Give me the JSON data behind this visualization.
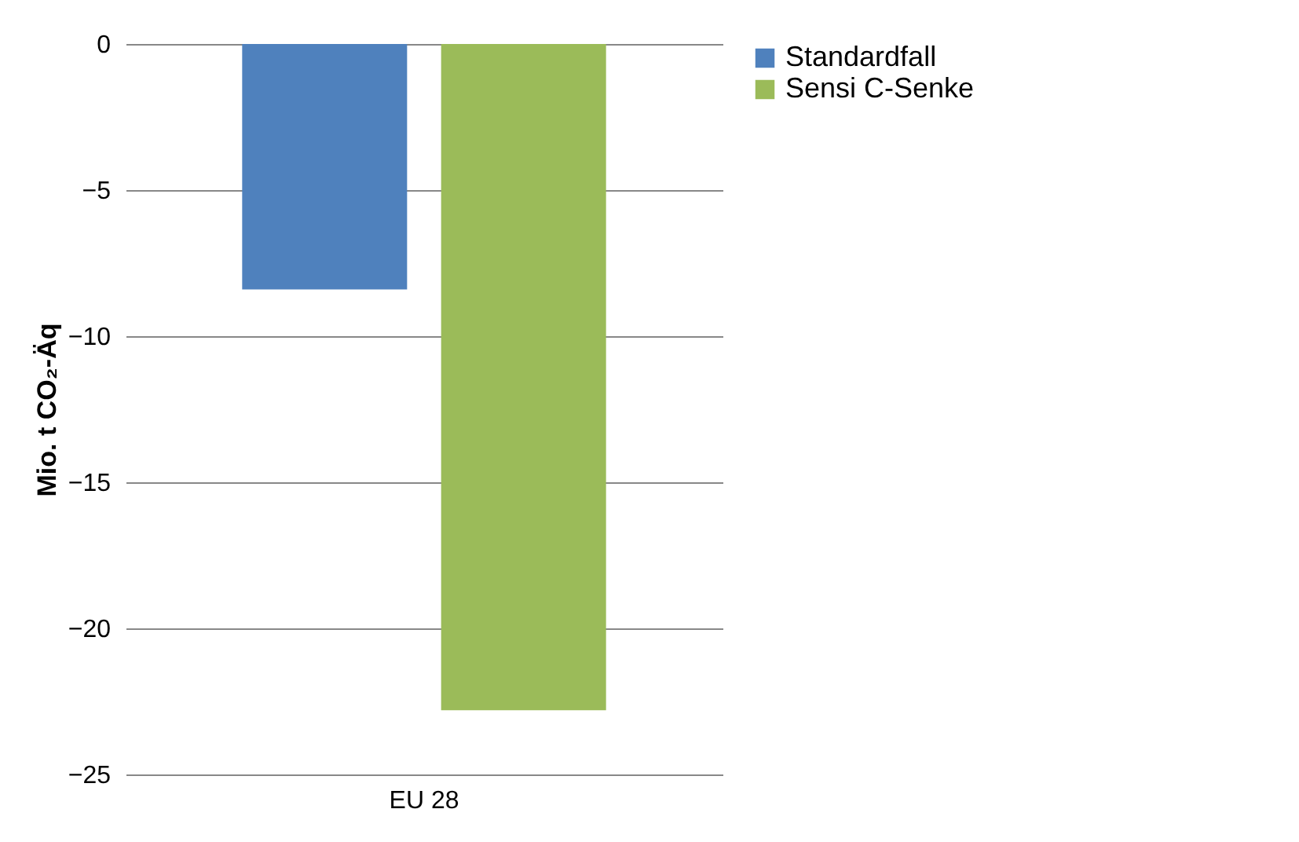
{
  "chart_data": {
    "type": "bar",
    "ylabel": "Mio. t CO₂-Äq",
    "categories": [
      "EU 28"
    ],
    "series": [
      {
        "name": "Standardfall",
        "color": "#4f81bd",
        "values": [
          -8.4
        ]
      },
      {
        "name": "Sensi C-Senke",
        "color": "#9bbb59",
        "values": [
          -22.8
        ]
      }
    ],
    "ylim": [
      -25,
      0
    ],
    "yticks": [
      -25,
      -20,
      -15,
      -10,
      -5,
      0
    ],
    "grid": "y",
    "legend": "right"
  }
}
